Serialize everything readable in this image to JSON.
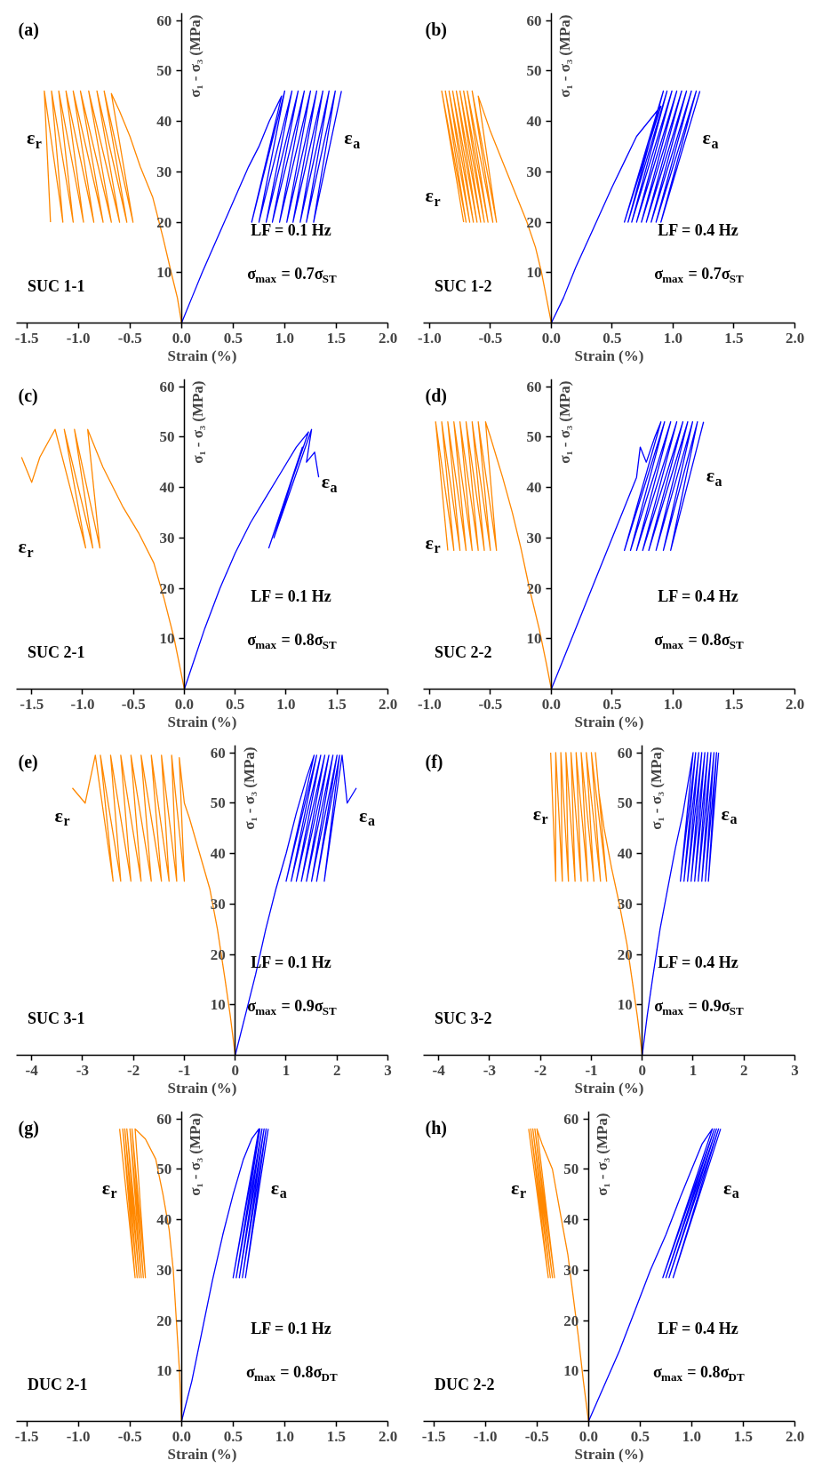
{
  "chart_data": [
    {
      "type": "line",
      "title": "(a)",
      "xlabel": "Strain (%)",
      "ylabel": "σ₁ - σ₃ (MPa)",
      "annotations": [
        "SUC 1-1",
        "LF = 0.1 Hz",
        "σ$_{max}$ = 0.7σ$_{ST}$"
      ],
      "xlim": [
        -1.6,
        2.0
      ],
      "ylim": [
        0,
        61.5
      ],
      "xticks": [
        -1.5,
        {
          "value": -1.0,
          "label": "-1.0"
        },
        -0.5,
        {
          "value": 0,
          "label": "0.0"
        },
        0.5,
        {
          "value": 1,
          "label": "1.0"
        },
        1.5,
        {
          "value": 2,
          "label": "2.0"
        }
      ],
      "yticks": [
        10,
        20,
        30,
        40,
        50,
        60
      ],
      "series": [
        {
          "name": "ε$_{r}$",
          "color": "#ff8800",
          "x": [
            0,
            -0.04,
            -0.1,
            -0.18,
            -0.28,
            -0.4,
            -0.5,
            -0.6,
            -0.68,
            -0.47,
            -0.75,
            -0.53,
            -0.82,
            -0.6,
            -0.9,
            -0.68,
            -0.98,
            -0.76,
            -1.05,
            -0.85,
            -1.12,
            -0.95,
            -1.19,
            -1.05,
            -1.26,
            -1.15,
            -1.33,
            -1.27
          ],
          "values": [
            0,
            5,
            10,
            17,
            25,
            31,
            37,
            42,
            45.5,
            20,
            46,
            20,
            46,
            20,
            46,
            20,
            46,
            20,
            46,
            20,
            46,
            20,
            46,
            20,
            46,
            20,
            46,
            20
          ]
        },
        {
          "name": "ε$_{a}$",
          "color": "#0000ff",
          "x": [
            0,
            0.1,
            0.2,
            0.35,
            0.5,
            0.65,
            0.75,
            0.85,
            0.97,
            0.68,
            1.0,
            0.75,
            1.07,
            0.82,
            1.13,
            0.88,
            1.19,
            0.95,
            1.25,
            1.02,
            1.31,
            1.08,
            1.37,
            1.15,
            1.43,
            1.21,
            1.49,
            1.28,
            1.55
          ],
          "values": [
            0,
            5,
            10,
            17,
            24,
            31,
            35,
            40,
            45,
            20,
            46,
            20,
            46,
            20,
            46,
            20,
            46,
            20,
            46,
            20,
            46,
            20,
            46,
            20,
            46,
            20,
            46,
            20,
            46
          ]
        }
      ]
    },
    {
      "type": "line",
      "title": "(b)",
      "xlabel": "Strain (%)",
      "ylabel": "σ₁ - σ₃ (MPa)",
      "annotations": [
        "SUC 1-2",
        "LF = 0.4 Hz",
        "σ$_{max}$ = 0.7σ$_{ST}$"
      ],
      "xlim": [
        -1.05,
        2.0
      ],
      "ylim": [
        0,
        61.5
      ],
      "xticks": [
        {
          "value": -1.0,
          "label": "-1.0"
        },
        -0.5,
        {
          "value": 0,
          "label": "0.0"
        },
        0.5,
        {
          "value": 1,
          "label": "1.0"
        },
        1.5,
        {
          "value": 2,
          "label": "2.0"
        }
      ],
      "yticks": [
        10,
        20,
        30,
        40,
        50,
        60
      ],
      "series": [
        {
          "name": "ε$_{r}$",
          "color": "#ff8800",
          "x": [
            0,
            -0.04,
            -0.08,
            -0.13,
            -0.2,
            -0.3,
            -0.4,
            -0.5,
            -0.6,
            -0.45,
            -0.65,
            -0.48,
            -0.69,
            -0.52,
            -0.72,
            -0.55,
            -0.75,
            -0.58,
            -0.78,
            -0.61,
            -0.81,
            -0.64,
            -0.84,
            -0.67,
            -0.87,
            -0.7,
            -0.9,
            -0.72
          ],
          "values": [
            0,
            5,
            10,
            15,
            20,
            26,
            32,
            38,
            45,
            20,
            46,
            20,
            46,
            20,
            46,
            20,
            46,
            20,
            46,
            20,
            46,
            20,
            46,
            20,
            46,
            20,
            46,
            20
          ]
        },
        {
          "name": "ε$_{a}$",
          "color": "#0000ff",
          "x": [
            0,
            0.1,
            0.2,
            0.35,
            0.5,
            0.6,
            0.7,
            0.8,
            0.9,
            0.6,
            0.92,
            0.63,
            0.95,
            0.66,
            0.99,
            0.7,
            1.03,
            0.74,
            1.07,
            0.78,
            1.11,
            0.82,
            1.15,
            0.86,
            1.19,
            0.9,
            1.22
          ],
          "values": [
            0,
            5,
            11,
            19,
            27,
            32,
            37,
            40,
            43,
            20,
            46,
            20,
            46,
            20,
            46,
            20,
            46,
            20,
            46,
            20,
            46,
            20,
            46,
            20,
            46,
            20,
            46
          ]
        }
      ]
    },
    {
      "type": "line",
      "title": "(c)",
      "xlabel": "Strain (%)",
      "ylabel": "σ₁ - σ₃ (MPa)",
      "annotations": [
        "SUC 2-1",
        "LF = 0.1 Hz",
        "σ$_{max}$ = 0.8σ$_{ST}$"
      ],
      "xlim": [
        -1.65,
        2.0
      ],
      "ylim": [
        0,
        61.5
      ],
      "xticks": [
        -1.5,
        {
          "value": -1.0,
          "label": "-1.0"
        },
        -0.5,
        {
          "value": 0,
          "label": "0.0"
        },
        0.5,
        {
          "value": 1,
          "label": "1.0"
        },
        1.5,
        {
          "value": 2,
          "label": "2.0"
        }
      ],
      "yticks": [
        10,
        20,
        30,
        40,
        50,
        60
      ],
      "series": [
        {
          "name": "ε$_{r}$",
          "color": "#ff8800",
          "x": [
            0,
            -0.05,
            -0.1,
            -0.2,
            -0.3,
            -0.45,
            -0.6,
            -0.8,
            -0.95,
            -0.83,
            -1.08,
            -0.9,
            -1.18,
            -0.97,
            -1.27,
            -1.42,
            -1.5,
            -1.6
          ],
          "values": [
            0,
            5,
            10,
            18,
            25,
            31,
            36,
            44,
            51.5,
            28,
            51.5,
            28,
            51.5,
            28,
            51.5,
            46,
            41,
            46
          ]
        },
        {
          "name": "ε$_{a}$",
          "color": "#0000ff",
          "x": [
            0,
            0.1,
            0.2,
            0.35,
            0.5,
            0.65,
            0.8,
            0.95,
            1.1,
            1.22,
            0.83,
            1.16,
            0.88,
            1.25,
            1.2,
            1.28,
            1.32
          ],
          "values": [
            0,
            6,
            12,
            20,
            27,
            33,
            38,
            43,
            48,
            51,
            28,
            48,
            30,
            51.5,
            45,
            47,
            42
          ]
        }
      ]
    },
    {
      "type": "line",
      "title": "(d)",
      "xlabel": "Strain (%)",
      "ylabel": "σ₁ - σ₃ (MPa)",
      "annotations": [
        "SUC 2-2",
        "LF = 0.4 Hz",
        "σ$_{max}$ = 0.8σ$_{ST}$"
      ],
      "xlim": [
        -1.05,
        2.0
      ],
      "ylim": [
        0,
        61.5
      ],
      "xticks": [
        {
          "value": -1.0,
          "label": "-1.0"
        },
        -0.5,
        {
          "value": 0,
          "label": "0.0"
        },
        0.5,
        {
          "value": 1,
          "label": "1.0"
        },
        1.5,
        {
          "value": 2,
          "label": "2.0"
        }
      ],
      "yticks": [
        10,
        20,
        30,
        40,
        50,
        60
      ],
      "series": [
        {
          "name": "ε$_{r}$",
          "color": "#ff8800",
          "x": [
            0,
            -0.04,
            -0.1,
            -0.18,
            -0.25,
            -0.32,
            -0.4,
            -0.45,
            -0.5,
            -0.54,
            -0.45,
            -0.6,
            -0.5,
            -0.65,
            -0.55,
            -0.7,
            -0.6,
            -0.75,
            -0.65,
            -0.8,
            -0.7,
            -0.85,
            -0.75,
            -0.9,
            -0.8,
            -0.95,
            -0.85
          ],
          "values": [
            0,
            5,
            12,
            20,
            28,
            35,
            42,
            46,
            50,
            53,
            27.5,
            53,
            27.5,
            53,
            27.5,
            53,
            27.5,
            53,
            27.5,
            53,
            27.5,
            53,
            27.5,
            53,
            27.5,
            53,
            27.5
          ]
        },
        {
          "name": "ε$_{a}$",
          "color": "#0000ff",
          "x": [
            0,
            0.1,
            0.2,
            0.35,
            0.5,
            0.6,
            0.7,
            0.73,
            0.78,
            0.85,
            0.9,
            0.6,
            0.93,
            0.65,
            0.98,
            0.7,
            1.03,
            0.75,
            1.08,
            0.8,
            1.12,
            0.86,
            1.16,
            0.92,
            1.2,
            0.98,
            1.25
          ],
          "values": [
            0,
            6,
            12,
            21,
            30,
            36,
            42,
            48,
            45,
            50,
            53,
            27.5,
            53,
            27.5,
            53,
            27.5,
            53,
            27.5,
            53,
            27.5,
            53,
            27.5,
            53,
            27.5,
            53,
            27.5,
            53
          ]
        }
      ]
    },
    {
      "type": "line",
      "title": "(e)",
      "xlabel": "Strain (%)",
      "ylabel": "σ₁ - σ₃ (MPa)",
      "annotations": [
        "SUC 3-1",
        "LF = 0.1 Hz",
        "σ$_{max}$ = 0.9σ$_{ST}$"
      ],
      "xlim": [
        -4.3,
        3.0
      ],
      "ylim": [
        0,
        61.5
      ],
      "xticks": [
        -4,
        -3,
        -2,
        -1,
        0,
        1,
        2,
        3
      ],
      "yticks": [
        10,
        20,
        30,
        40,
        50,
        60
      ],
      "series": [
        {
          "name": "ε$_{r}$",
          "color": "#ff8800",
          "x": [
            0,
            -0.1,
            -0.2,
            -0.35,
            -0.5,
            -0.7,
            -0.9,
            -1.0,
            -1.1,
            -1.0,
            -1.25,
            -1.15,
            -1.45,
            -1.3,
            -1.65,
            -1.45,
            -1.85,
            -1.65,
            -2.05,
            -1.85,
            -2.25,
            -2.05,
            -2.45,
            -2.25,
            -2.65,
            -2.4,
            -2.75,
            -2.95,
            -3.2
          ],
          "values": [
            0,
            8,
            15,
            25,
            33,
            40,
            47,
            50,
            59,
            34.5,
            59.5,
            34.5,
            59.5,
            34.5,
            59.5,
            34.5,
            59.5,
            34.5,
            59.5,
            34.5,
            59.5,
            34.5,
            59.5,
            34.5,
            59.5,
            34.5,
            59.5,
            50,
            53
          ]
        },
        {
          "name": "ε$_{a}$",
          "color": "#0000ff",
          "x": [
            0,
            0.2,
            0.4,
            0.6,
            0.8,
            1.0,
            1.2,
            1.4,
            1.55,
            1.0,
            1.6,
            1.1,
            1.68,
            1.2,
            1.76,
            1.3,
            1.84,
            1.4,
            1.92,
            1.5,
            2.0,
            1.6,
            2.05,
            1.75,
            2.1,
            2.2,
            2.38
          ],
          "values": [
            0,
            8,
            16,
            25,
            33,
            40,
            48,
            55,
            59.5,
            34.5,
            59.5,
            34.5,
            59.5,
            34.5,
            59.5,
            34.5,
            59.5,
            34.5,
            59.5,
            34.5,
            59.5,
            34.5,
            59.5,
            34.5,
            59.5,
            50,
            53
          ]
        }
      ]
    },
    {
      "type": "line",
      "title": "(f)",
      "xlabel": "Strain (%)",
      "ylabel": "σ₁ - σ₃ (MPa)",
      "annotations": [
        "SUC 3-2",
        "LF = 0.4 Hz",
        "σ$_{max}$ = 0.9σ$_{ST}$"
      ],
      "xlim": [
        -4.3,
        3.0
      ],
      "ylim": [
        0,
        61.5
      ],
      "xticks": [
        -4,
        -3,
        -2,
        -1,
        0,
        1,
        2,
        3
      ],
      "yticks": [
        10,
        20,
        30,
        40,
        50,
        60
      ],
      "series": [
        {
          "name": "ε$_{r}$",
          "color": "#ff8800",
          "x": [
            0,
            -0.1,
            -0.2,
            -0.3,
            -0.45,
            -0.6,
            -0.75,
            -0.85,
            -0.92,
            -0.7,
            -1.0,
            -0.82,
            -1.1,
            -0.95,
            -1.2,
            -1.07,
            -1.3,
            -1.2,
            -1.4,
            -1.32,
            -1.5,
            -1.45,
            -1.6,
            -1.57,
            -1.7,
            -1.7,
            -1.8
          ],
          "values": [
            0,
            8,
            15,
            22,
            30,
            37,
            45,
            52,
            60,
            34.5,
            60,
            34.5,
            60,
            34.5,
            60,
            34.5,
            60,
            34.5,
            60,
            34.5,
            60,
            34.5,
            60,
            34.5,
            60,
            34.5,
            60
          ]
        },
        {
          "name": "ε$_{a}$",
          "color": "#0000ff",
          "x": [
            0,
            0.1,
            0.2,
            0.35,
            0.5,
            0.65,
            0.8,
            0.9,
            1.0,
            0.75,
            1.05,
            0.82,
            1.11,
            0.89,
            1.17,
            0.96,
            1.23,
            1.03,
            1.29,
            1.1,
            1.35,
            1.17,
            1.41,
            1.24,
            1.46,
            1.3,
            1.5
          ],
          "values": [
            0,
            8,
            15,
            25,
            33,
            41,
            48,
            54,
            60,
            34.5,
            60,
            34.5,
            60,
            34.5,
            60,
            34.5,
            60,
            34.5,
            60,
            34.5,
            60,
            34.5,
            60,
            34.5,
            60,
            34.5,
            60
          ]
        }
      ]
    },
    {
      "type": "line",
      "title": "(g)",
      "xlabel": "Strain (%)",
      "ylabel": "σ₁ - σ₃ (MPa)",
      "annotations": [
        "DUC 2-1",
        "LF = 0.1 Hz",
        "σ$_{max}$ = 0.8σ$_{DT}$"
      ],
      "xlim": [
        -1.6,
        2.0
      ],
      "ylim": [
        0,
        61.5
      ],
      "xticks": [
        -1.5,
        {
          "value": -1.0,
          "label": "-1.0"
        },
        -0.5,
        {
          "value": 0,
          "label": "0.0"
        },
        0.5,
        {
          "value": 1,
          "label": "1.0"
        },
        1.5,
        {
          "value": 2,
          "label": "2.0"
        }
      ],
      "yticks": [
        10,
        20,
        30,
        40,
        50,
        60
      ],
      "series": [
        {
          "name": "ε$_{r}$",
          "color": "#ff8800",
          "x": [
            0,
            -0.02,
            -0.05,
            -0.08,
            -0.12,
            -0.18,
            -0.25,
            -0.35,
            -0.45,
            -0.35,
            -0.48,
            -0.37,
            -0.5,
            -0.39,
            -0.53,
            -0.41,
            -0.55,
            -0.43,
            -0.57,
            -0.45,
            -0.6
          ],
          "values": [
            0,
            10,
            20,
            30,
            38,
            45,
            52,
            56,
            58,
            28.5,
            58,
            28.5,
            58,
            28.5,
            58,
            28.5,
            58,
            28.5,
            58,
            28.5,
            58
          ]
        },
        {
          "name": "ε$_{a}$",
          "color": "#0000ff",
          "x": [
            0,
            0.1,
            0.2,
            0.3,
            0.4,
            0.5,
            0.6,
            0.68,
            0.75,
            0.5,
            0.76,
            0.53,
            0.78,
            0.56,
            0.8,
            0.59,
            0.82,
            0.62,
            0.84
          ],
          "values": [
            0,
            8,
            18,
            28,
            37,
            45,
            52,
            56,
            58,
            28.5,
            58,
            28.5,
            58,
            28.5,
            58,
            28.5,
            58,
            28.5,
            58
          ]
        }
      ]
    },
    {
      "type": "line",
      "title": "(h)",
      "xlabel": "Strain (%)",
      "ylabel": "σ₁ - σ₃ (MPa)",
      "annotations": [
        "DUC 2-2",
        "LF = 0.4 Hz",
        "σ$_{max}$ = 0.8σ$_{DT}$"
      ],
      "xlim": [
        -1.6,
        2.0
      ],
      "ylim": [
        0,
        61.5
      ],
      "xticks": [
        -1.5,
        {
          "value": -1.0,
          "label": "-1.0"
        },
        -0.5,
        {
          "value": 0,
          "label": "0.0"
        },
        0.5,
        {
          "value": 1,
          "label": "1.0"
        },
        1.5,
        {
          "value": 2,
          "label": "2.0"
        }
      ],
      "yticks": [
        10,
        20,
        30,
        40,
        50,
        60
      ],
      "series": [
        {
          "name": "ε$_{r}$",
          "color": "#ff8800",
          "x": [
            0,
            -0.05,
            -0.1,
            -0.15,
            -0.2,
            -0.28,
            -0.35,
            -0.45,
            -0.5,
            -0.33,
            -0.52,
            -0.35,
            -0.54,
            -0.37,
            -0.56,
            -0.39,
            -0.58
          ],
          "values": [
            0,
            8,
            17,
            25,
            33,
            42,
            50,
            55,
            58,
            28.5,
            58,
            28.5,
            58,
            28.5,
            58,
            28.5,
            58
          ]
        },
        {
          "name": "ε$_{a}$",
          "color": "#0000ff",
          "x": [
            0,
            0.15,
            0.3,
            0.45,
            0.6,
            0.75,
            0.9,
            1.0,
            1.1,
            1.2,
            0.72,
            1.22,
            0.75,
            1.24,
            0.78,
            1.26,
            0.82,
            1.28
          ],
          "values": [
            0,
            7,
            14,
            22,
            30,
            37,
            45,
            50,
            55,
            58,
            28.5,
            58,
            28.5,
            58,
            28.5,
            58,
            28.5,
            58
          ]
        }
      ]
    }
  ]
}
